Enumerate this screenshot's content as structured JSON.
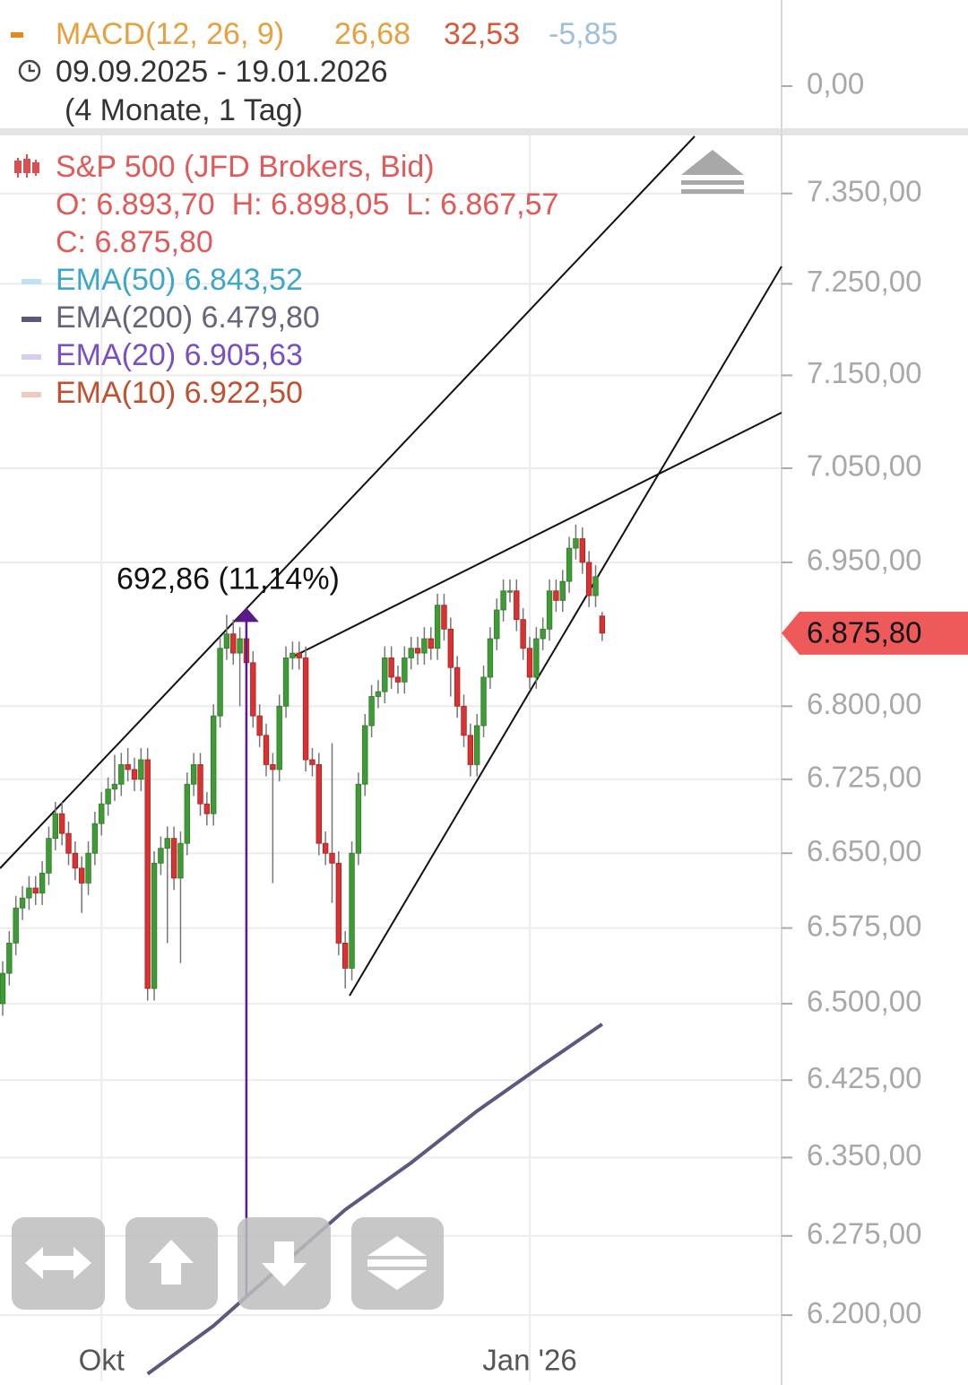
{
  "header": {
    "macd_label": "MACD(12, 26, 9)",
    "macd_line": "26,68",
    "macd_signal": "32,53",
    "macd_hist": "-5,85",
    "range": "09.09.2025 - 19.01.2026",
    "span": "(4 Monate, 1 Tag)",
    "macd_tick": "0,00"
  },
  "legend": {
    "instrument": "S&P 500 (JFD Brokers, Bid)",
    "ohlc": "O: 6.893,70  H: 6.898,05  L: 6.867,57",
    "close": "C: 6.875,80",
    "ema": [
      {
        "label": "EMA(50) 6.843,52",
        "color": "#3ea7c8",
        "swatch": "#bfe3ee"
      },
      {
        "label": "EMA(200) 6.479,80",
        "color": "#66667a",
        "swatch": "#5a5a78"
      },
      {
        "label": "EMA(20) 6.905,63",
        "color": "#7a4fc0",
        "swatch": "#d9cdee"
      },
      {
        "label": "EMA(10) 6.922,50",
        "color": "#c0502f",
        "swatch": "#f0c8bc"
      }
    ]
  },
  "chart_data": {
    "type": "candlestick",
    "log_scale": true,
    "grid": true,
    "up_color": "#3f9b35",
    "down_color": "#d83232",
    "categories": [
      null,
      null,
      null,
      null,
      null,
      null,
      null,
      null,
      null,
      null,
      null,
      null,
      null,
      null,
      null,
      "Okt",
      null,
      null,
      null,
      null,
      null,
      null,
      null,
      null,
      null,
      null,
      null,
      null,
      null,
      null,
      null,
      null,
      null,
      null,
      null,
      null,
      null,
      null,
      null,
      null,
      null,
      null,
      null,
      null,
      null,
      null,
      null,
      null,
      null,
      null,
      null,
      null,
      null,
      null,
      null,
      null,
      null,
      null,
      null,
      null,
      null,
      null,
      null,
      null,
      null,
      null,
      null,
      null,
      null,
      null,
      null,
      null,
      null,
      null,
      null,
      null,
      null,
      null,
      null,
      null,
      "Jan '26",
      null,
      null,
      null,
      null,
      null,
      null,
      null,
      null,
      null,
      null,
      null
    ],
    "open": [
      6500,
      6530,
      6560,
      6595,
      6605,
      6615,
      6610,
      6630,
      6665,
      6690,
      6670,
      6650,
      6635,
      6620,
      6650,
      6680,
      6700,
      6715,
      6720,
      6740,
      6735,
      6725,
      6745,
      6515,
      6640,
      6655,
      6665,
      6625,
      6660,
      6720,
      6740,
      6700,
      6690,
      6790,
      6860,
      6875,
      6855,
      6870,
      6845,
      6790,
      6770,
      6740,
      6735,
      6800,
      6850,
      6855,
      6850,
      6745,
      6740,
      6660,
      6650,
      6640,
      6560,
      6535,
      6650,
      6720,
      6780,
      6810,
      6815,
      6850,
      6830,
      6825,
      6850,
      6860,
      6855,
      6870,
      6860,
      6905,
      6880,
      6840,
      6800,
      6770,
      6740,
      6780,
      6830,
      6870,
      6900,
      6920,
      6920,
      6890,
      6860,
      6830,
      6870,
      6880,
      6920,
      6910,
      6930,
      6965,
      6975,
      6950,
      6915,
      6893.7
    ],
    "high": [
      6542,
      6572,
      6607,
      6617,
      6627,
      6627,
      6642,
      6677,
      6702,
      6702,
      6682,
      6662,
      6647,
      6662,
      6692,
      6712,
      6727,
      6750,
      6752,
      6757,
      6747,
      6757,
      6757,
      6652,
      6667,
      6677,
      6677,
      6672,
      6732,
      6752,
      6752,
      6712,
      6802,
      6872,
      6895,
      6890,
      6882,
      6882,
      6857,
      6802,
      6782,
      6752,
      6812,
      6862,
      6867,
      6867,
      6862,
      6757,
      6752,
      6672,
      6762,
      6652,
      6572,
      6662,
      6732,
      6792,
      6822,
      6827,
      6862,
      6862,
      6842,
      6862,
      6872,
      6872,
      6882,
      6882,
      6917,
      6917,
      6892,
      6852,
      6812,
      6782,
      6792,
      6842,
      6882,
      6912,
      6932,
      6932,
      6932,
      6902,
      6872,
      6882,
      6892,
      6932,
      6932,
      6942,
      6977,
      6990,
      6987,
      6962,
      6947,
      6898.05
    ],
    "low": [
      6488,
      6518,
      6548,
      6583,
      6593,
      6598,
      6598,
      6618,
      6653,
      6658,
      6638,
      6623,
      6590,
      6608,
      6638,
      6668,
      6688,
      6703,
      6708,
      6723,
      6713,
      6713,
      6503,
      6503,
      6628,
      6560,
      6613,
      6540,
      6648,
      6708,
      6688,
      6678,
      6678,
      6778,
      6848,
      6843,
      6800,
      6833,
      6778,
      6758,
      6728,
      6620,
      6723,
      6788,
      6838,
      6838,
      6733,
      6728,
      6648,
      6638,
      6600,
      6548,
      6515,
      6523,
      6638,
      6708,
      6768,
      6798,
      6803,
      6818,
      6813,
      6813,
      6838,
      6843,
      6843,
      6848,
      6848,
      6868,
      6810,
      6788,
      6758,
      6728,
      6728,
      6768,
      6818,
      6858,
      6888,
      6908,
      6878,
      6848,
      6818,
      6818,
      6858,
      6868,
      6898,
      6898,
      6918,
      6953,
      6938,
      6903,
      6903,
      6867.57
    ],
    "close": [
      6530,
      6560,
      6595,
      6605,
      6615,
      6610,
      6630,
      6665,
      6690,
      6670,
      6650,
      6635,
      6620,
      6650,
      6680,
      6700,
      6715,
      6720,
      6740,
      6735,
      6725,
      6745,
      6515,
      6640,
      6655,
      6665,
      6625,
      6660,
      6720,
      6740,
      6700,
      6690,
      6790,
      6860,
      6875,
      6855,
      6870,
      6845,
      6790,
      6770,
      6740,
      6735,
      6800,
      6850,
      6855,
      6850,
      6745,
      6740,
      6660,
      6650,
      6640,
      6560,
      6535,
      6650,
      6720,
      6780,
      6810,
      6815,
      6850,
      6830,
      6825,
      6850,
      6860,
      6855,
      6870,
      6860,
      6905,
      6880,
      6840,
      6800,
      6770,
      6740,
      6780,
      6830,
      6870,
      6900,
      6920,
      6920,
      6890,
      6860,
      6830,
      6870,
      6880,
      6920,
      6910,
      6930,
      6965,
      6975,
      6950,
      6915,
      6935,
      6875.8
    ],
    "last_label": "6.875,80",
    "ema200": {
      "color": "#5a5a80",
      "x": [
        22,
        32,
        42,
        52,
        62,
        72,
        82,
        91
      ],
      "values": [
        6145,
        6190,
        6245,
        6300,
        6345,
        6395,
        6440,
        6479.8
      ]
    },
    "annotation": {
      "label": "692,86 (11,14%)",
      "color": "#5a1a8a"
    },
    "ylim": [
      6138,
      7416
    ],
    "yticks": [
      {
        "value": 6200,
        "label": "6.200,00"
      },
      {
        "value": 6275,
        "label": "6.275,00"
      },
      {
        "value": 6350,
        "label": "6.350,00"
      },
      {
        "value": 6425,
        "label": "6.425,00"
      },
      {
        "value": 6500,
        "label": "6.500,00"
      },
      {
        "value": 6575,
        "label": "6.575,00"
      },
      {
        "value": 6650,
        "label": "6.650,00"
      },
      {
        "value": 6725,
        "label": "6.725,00"
      },
      {
        "value": 6800,
        "label": "6.800,00"
      },
      {
        "value": 6950,
        "label": "6.950,00"
      },
      {
        "value": 7050,
        "label": "7.050,00"
      },
      {
        "value": 7150,
        "label": "7.150,00"
      },
      {
        "value": 7250,
        "label": "7.250,00"
      },
      {
        "value": 7350,
        "label": "7.350,00"
      }
    ]
  }
}
